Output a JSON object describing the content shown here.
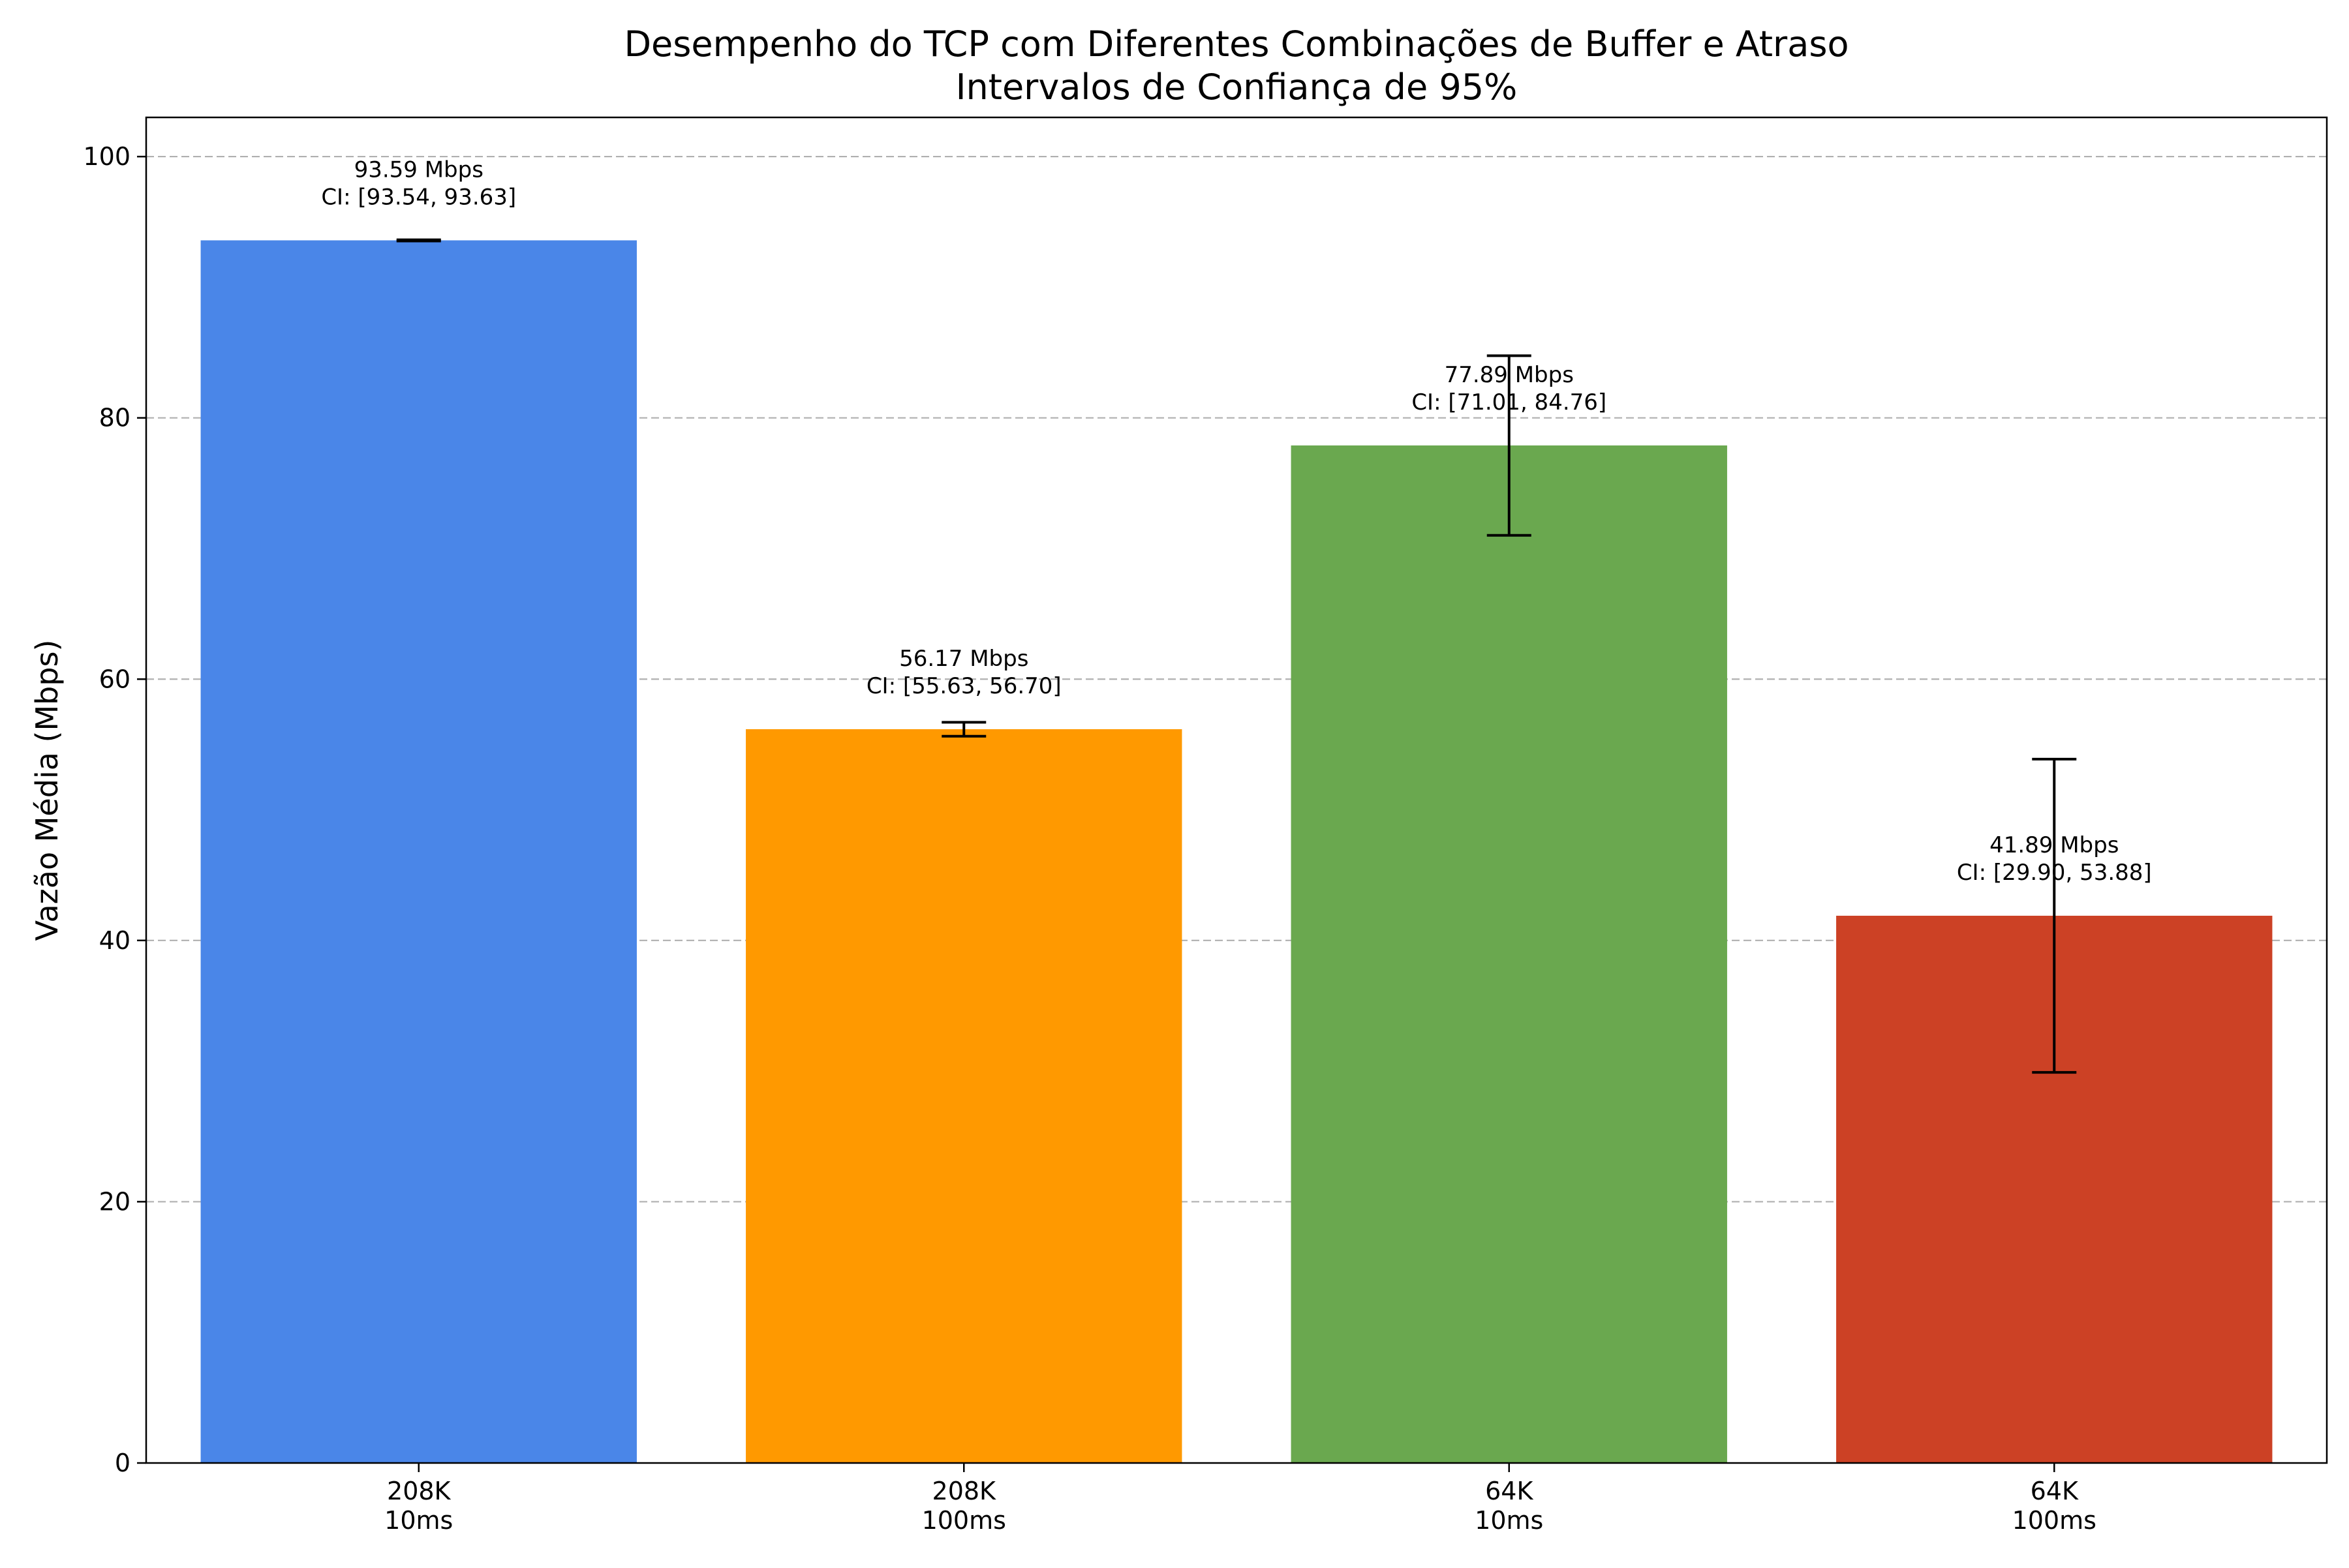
{
  "chart_data": {
    "type": "bar",
    "title_lines": [
      "Desempenho do TCP com Diferentes Combinações de Buffer e Atraso",
      "Intervalos de Confiança de 95%"
    ],
    "xlabel": "",
    "ylabel": "Vazão Média (Mbps)",
    "ylim": [
      0,
      103
    ],
    "yticks": [
      0,
      20,
      40,
      60,
      80,
      100
    ],
    "grid": "y-dashed",
    "categories": [
      [
        "208K",
        "10ms"
      ],
      [
        "208K",
        "100ms"
      ],
      [
        "64K",
        "10ms"
      ],
      [
        "64K",
        "100ms"
      ]
    ],
    "values": [
      93.59,
      56.17,
      77.89,
      41.89
    ],
    "ci": [
      [
        93.54,
        93.63
      ],
      [
        55.63,
        56.7
      ],
      [
        71.01,
        84.76
      ],
      [
        29.9,
        53.88
      ]
    ],
    "colors": [
      "#4a86e8",
      "#ff9900",
      "#6aa84f",
      "#cc4125"
    ],
    "data_labels": [
      [
        "93.59 Mbps",
        "CI: [93.54, 93.63]"
      ],
      [
        "56.17 Mbps",
        "CI: [55.63, 56.70]"
      ],
      [
        "77.89 Mbps",
        "CI: [71.01, 84.76]"
      ],
      [
        "41.89 Mbps",
        "CI: [29.90, 53.88]"
      ]
    ]
  }
}
